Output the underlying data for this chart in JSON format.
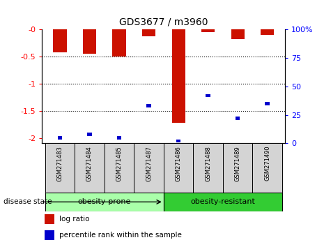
{
  "title": "GDS3677 / m3960",
  "samples": [
    "GSM271483",
    "GSM271484",
    "GSM271485",
    "GSM271487",
    "GSM271486",
    "GSM271488",
    "GSM271489",
    "GSM271490"
  ],
  "log_ratio": [
    -0.42,
    -0.45,
    -0.5,
    -0.12,
    -1.72,
    -0.05,
    -0.18,
    -0.1
  ],
  "percentile_rank": [
    5,
    8,
    5,
    33,
    2,
    42,
    22,
    35
  ],
  "groups": [
    {
      "label": "obesity-prone",
      "indices": [
        0,
        1,
        2,
        3
      ],
      "color": "#aaffaa"
    },
    {
      "label": "obesity-resistant",
      "indices": [
        4,
        5,
        6,
        7
      ],
      "color": "#33cc33"
    }
  ],
  "bar_color": "#cc1100",
  "pct_color": "#0000cc",
  "ylim_left": [
    -2.1,
    0.0
  ],
  "ylim_right": [
    0,
    100
  ],
  "yticks_left": [
    0.0,
    -0.5,
    -1.0,
    -1.5,
    -2.0
  ],
  "ytick_labels_left": [
    "-0",
    "-0.5",
    "-1",
    "-1.5",
    "-2"
  ],
  "yticks_right": [
    0,
    25,
    50,
    75,
    100
  ],
  "ytick_labels_right": [
    "0",
    "25",
    "50",
    "75",
    "100%"
  ],
  "bar_width": 0.45,
  "pct_bar_width": 0.15,
  "disease_state_label": "disease state",
  "legend_labels": [
    "log ratio",
    "percentile rank within the sample"
  ],
  "background_color": "#ffffff",
  "gray_bg": "#d4d4d4"
}
